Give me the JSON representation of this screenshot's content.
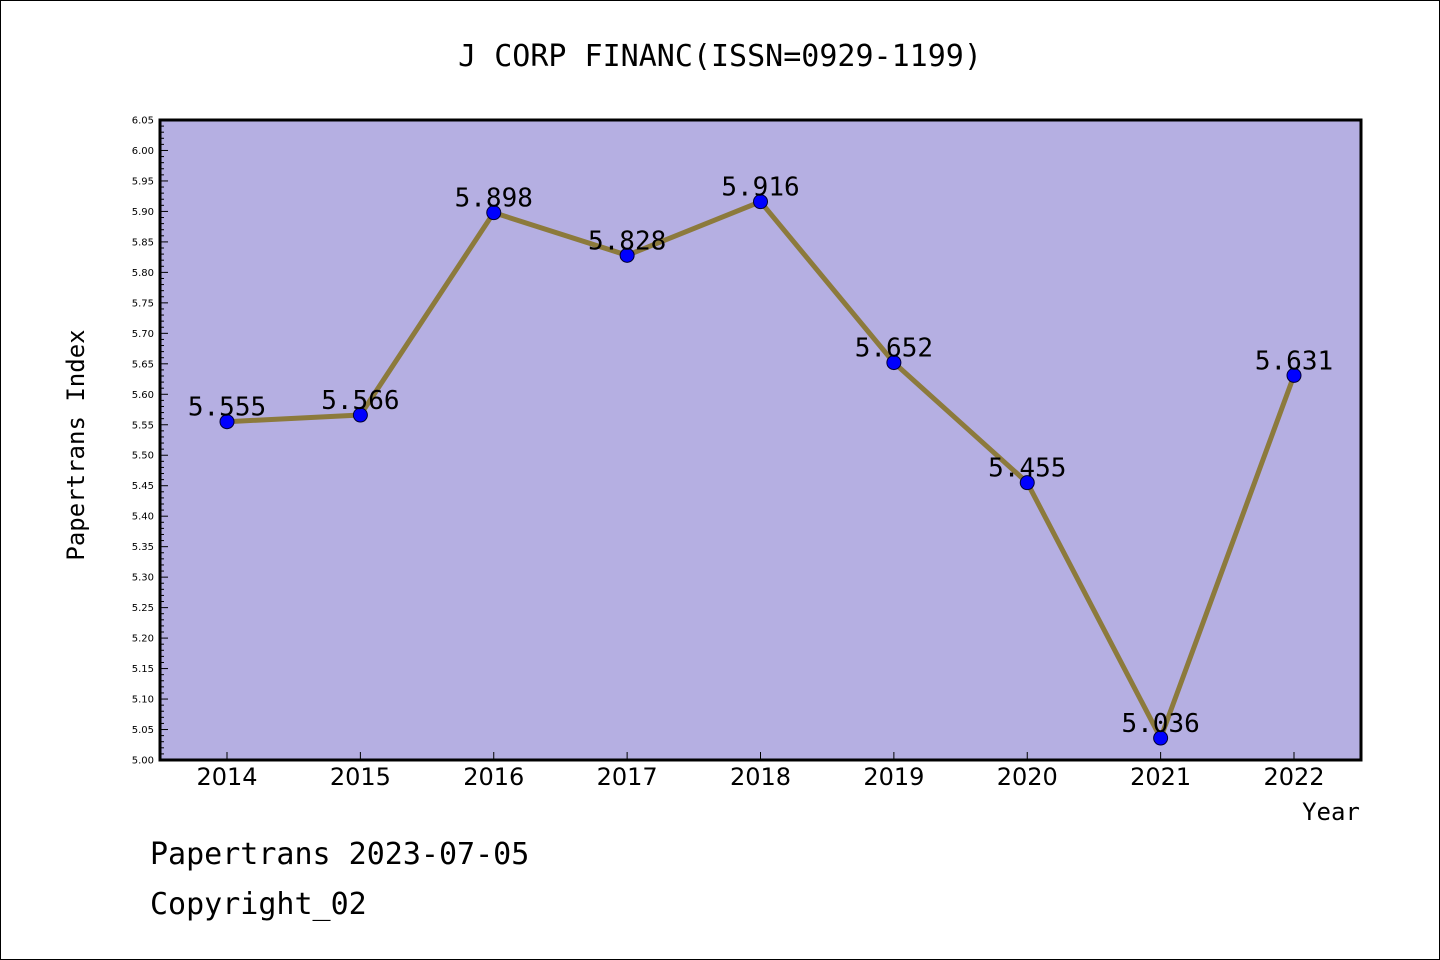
{
  "chart_data": {
    "type": "line",
    "title": "J CORP FINANC(ISSN=0929-1199)",
    "xlabel": "Year",
    "ylabel": "Papertrans Index",
    "categories": [
      "2014",
      "2015",
      "2016",
      "2017",
      "2018",
      "2019",
      "2020",
      "2021",
      "2022"
    ],
    "series": [
      {
        "values": [
          5.555,
          5.566,
          5.898,
          5.828,
          5.916,
          5.652,
          5.455,
          5.036,
          5.631
        ]
      }
    ],
    "data_labels": [
      "5.555",
      "5.566",
      "5.898",
      "5.828",
      "5.916",
      "5.652",
      "5.455",
      "5.036",
      "5.631"
    ],
    "ylim": [
      5.0,
      6.05
    ],
    "yticks": [
      "5.00",
      "5.05",
      "5.10",
      "5.15",
      "5.20",
      "5.25",
      "5.30",
      "5.35",
      "5.40",
      "5.45",
      "5.50",
      "5.55",
      "5.60",
      "5.65",
      "5.70",
      "5.75",
      "5.80",
      "5.85",
      "5.90",
      "5.95",
      "6.00",
      "6.05"
    ],
    "grid": false,
    "colors": {
      "plot_background": "#b5afe2",
      "line": "#8c7a3c",
      "marker": "#0000ff"
    }
  },
  "footer": {
    "date_line": "Papertrans 2023-07-05",
    "copyright": "Copyright_02"
  }
}
